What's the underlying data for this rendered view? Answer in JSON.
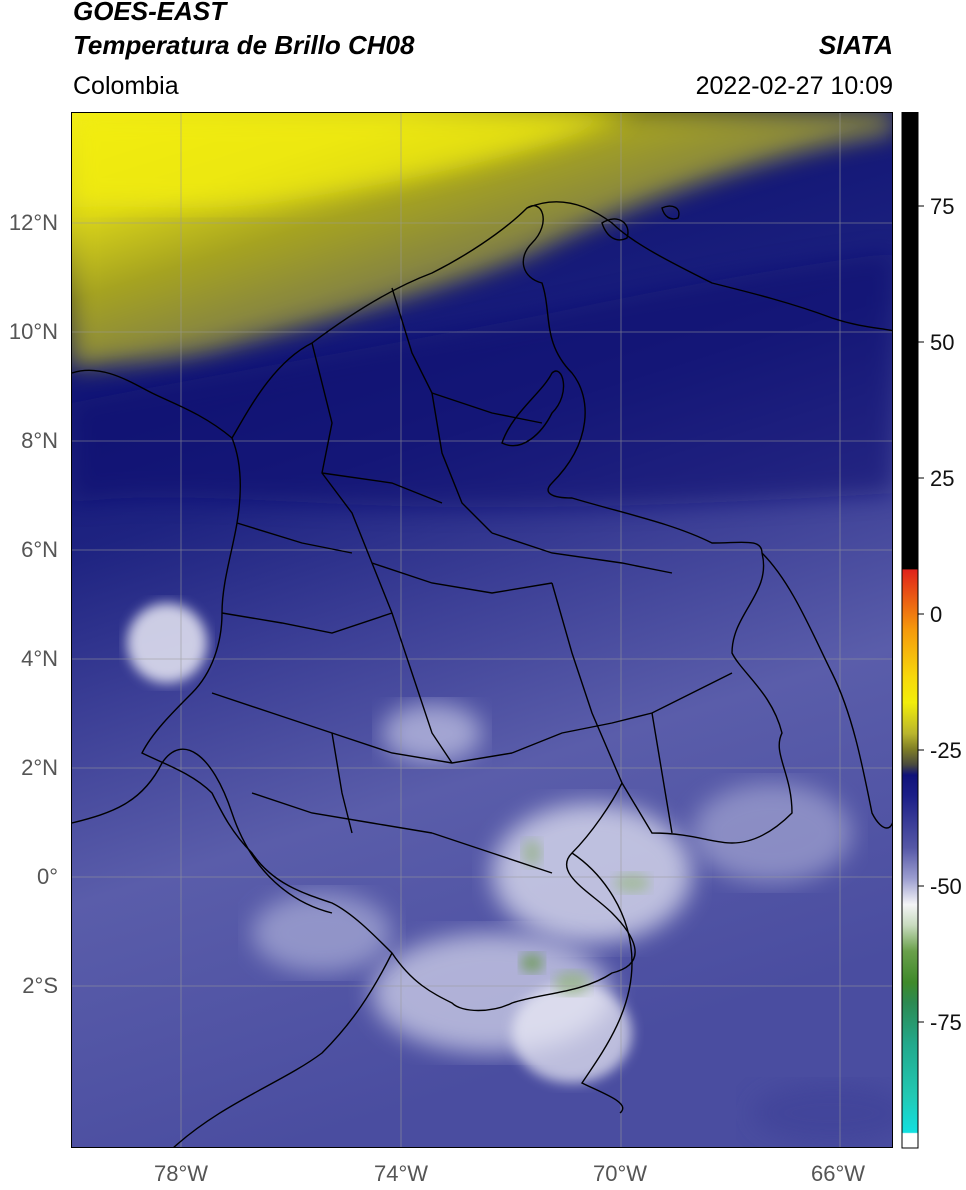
{
  "header": {
    "title_line1": "GOES-EAST",
    "title_line2": "Temperatura de Brillo CH08",
    "source": "SIATA",
    "region": "Colombia",
    "timestamp": "2022-02-27 10:09"
  },
  "map": {
    "lat_labels": [
      "12°N",
      "10°N",
      "8°N",
      "6°N",
      "4°N",
      "2°N",
      "0°",
      "2°S"
    ],
    "lon_labels": [
      "78°W",
      "74°W",
      "70°W",
      "66°W"
    ]
  },
  "colorbar": {
    "ticks": [
      "75",
      "50",
      "25",
      "0",
      "-25",
      "-50",
      "-75"
    ],
    "colors": {
      "black": "#000000",
      "red": "#e0231a",
      "orange": "#f59a0c",
      "yellow": "#f2ee0a",
      "olive": "#7f7e26",
      "navy": "#10127a",
      "slate": "#5557a6",
      "white": "#f4f4f6",
      "green": "#3f8a2a",
      "teal": "#22c9b4"
    }
  }
}
